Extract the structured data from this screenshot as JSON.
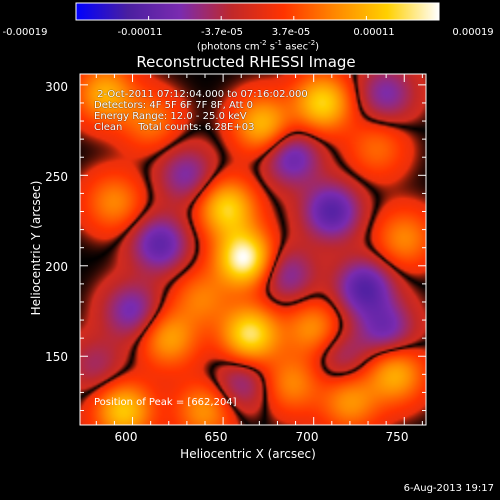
{
  "colorbar": {
    "ticks": [
      "-0.00019",
      "-0.00011",
      "-3.7e-05",
      "3.7e-05",
      "0.00011",
      "0.00019"
    ],
    "units_prefix": "(photons cm",
    "units_exp1": "-2",
    "units_mid": " s",
    "units_exp2": "-1",
    "units_mid2": " asec",
    "units_exp3": "-2",
    "units_suffix": ")"
  },
  "footer": {
    "date": "6-Aug-2013 19:17"
  },
  "chart_data": {
    "type": "heatmap",
    "title": "Reconstructed RHESSI Image",
    "xlabel": "Heliocentric X (arcsec)",
    "ylabel": "Heliocentric Y (arcsec)",
    "xlim": [
      571,
      762
    ],
    "ylim": [
      112,
      306
    ],
    "x_ticks": [
      "600",
      "650",
      "700",
      "750"
    ],
    "y_ticks": [
      "150",
      "200",
      "250",
      "300"
    ],
    "colorbar_range": [
      -0.00019,
      0.00019
    ],
    "colormap": [
      "#0000ff",
      "#4a1fa0",
      "#7a2bb0",
      "#c0282a",
      "#ff3300",
      "#ff8800",
      "#ffd000",
      "#ffffff"
    ],
    "annotations": {
      "time": " 2-Oct-2011 07:12:04.000 to 07:16:02.000",
      "detectors": "Detectors: 4F 5F 6F 7F 8F, Att 0",
      "energy": "Energy Range: 12.0 - 25.0 keV",
      "method": "Clean     Total counts: 6.28E+03"
    },
    "peak_label": "Position of Peak = [662,204]",
    "peak": [
      662,
      204
    ],
    "sources": [
      {
        "x": 662,
        "y": 204,
        "value": 0.00019
      },
      {
        "x": 652,
        "y": 232,
        "value": 0.00014
      },
      {
        "x": 665,
        "y": 162,
        "value": 0.00016
      },
      {
        "x": 705,
        "y": 290,
        "value": 0.00014
      },
      {
        "x": 672,
        "y": 278,
        "value": 0.00012
      },
      {
        "x": 595,
        "y": 120,
        "value": 0.00013
      },
      {
        "x": 585,
        "y": 295,
        "value": 0.00011
      },
      {
        "x": 620,
        "y": 160,
        "value": 0.0001
      },
      {
        "x": 700,
        "y": 165,
        "value": 9e-05
      },
      {
        "x": 750,
        "y": 215,
        "value": 8e-05
      },
      {
        "x": 745,
        "y": 140,
        "value": 0.00011
      },
      {
        "x": 720,
        "y": 125,
        "value": 9e-05
      },
      {
        "x": 610,
        "y": 280,
        "value": 7e-05
      },
      {
        "x": 590,
        "y": 235,
        "value": 8e-05
      },
      {
        "x": 735,
        "y": 265,
        "value": 6e-05
      },
      {
        "x": 640,
        "y": 120,
        "value": 9e-05
      },
      {
        "x": 688,
        "y": 135,
        "value": 8e-05
      },
      {
        "x": 638,
        "y": 182,
        "value": 7e-05
      },
      {
        "x": 615,
        "y": 212,
        "value": -0.00011
      },
      {
        "x": 710,
        "y": 230,
        "value": -0.00012
      },
      {
        "x": 728,
        "y": 188,
        "value": -0.00012
      },
      {
        "x": 688,
        "y": 260,
        "value": -0.0001
      },
      {
        "x": 600,
        "y": 175,
        "value": -9e-05
      },
      {
        "x": 740,
        "y": 295,
        "value": -8e-05
      },
      {
        "x": 660,
        "y": 135,
        "value": -7e-05
      },
      {
        "x": 740,
        "y": 165,
        "value": -9e-05
      },
      {
        "x": 630,
        "y": 250,
        "value": -8e-05
      },
      {
        "x": 685,
        "y": 195,
        "value": -8e-05
      },
      {
        "x": 715,
        "y": 150,
        "value": -6e-05
      },
      {
        "x": 580,
        "y": 145,
        "value": -5e-05
      }
    ]
  }
}
